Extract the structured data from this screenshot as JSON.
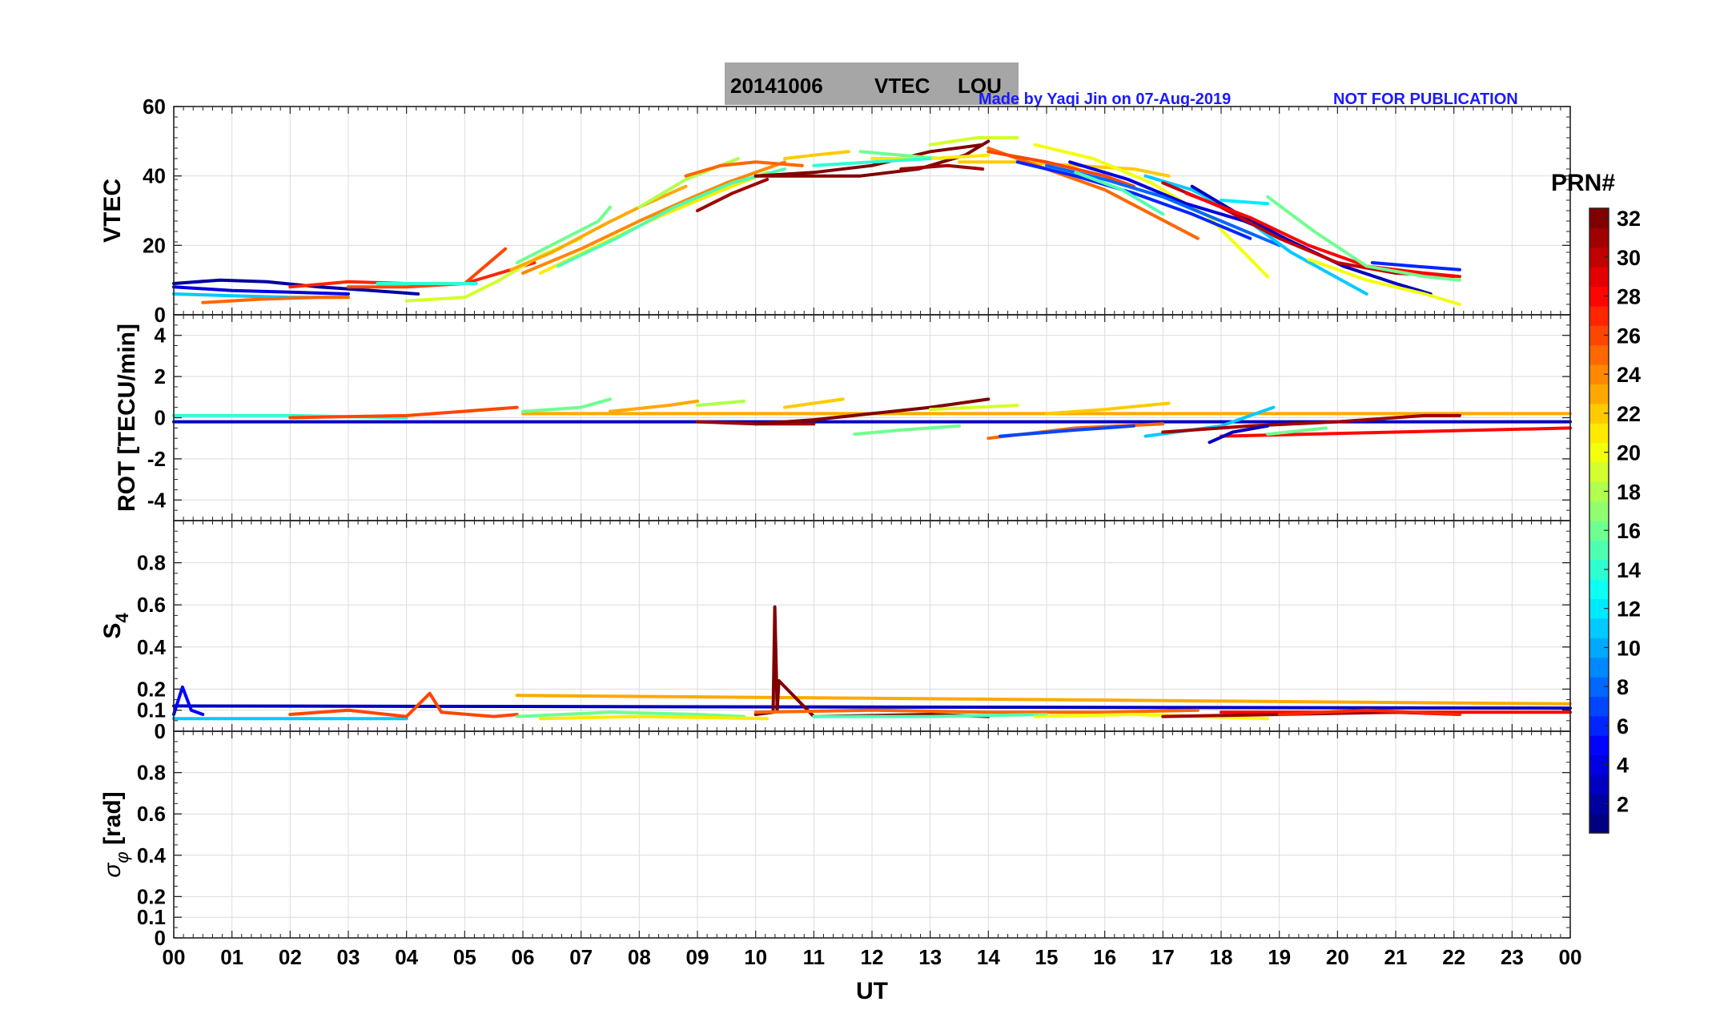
{
  "title": {
    "date": "20141006",
    "quantity": "VTEC",
    "station": "LOU",
    "credit": "Made by Yaqi Jin on 07-Aug-2019",
    "warning": "NOT FOR PUBLICATION"
  },
  "colors": {
    "title_bg": "#a6a6a6",
    "note": "#1a1aff",
    "grid": "#dcdcdc"
  },
  "chart_data": [
    {
      "type": "line",
      "panel": "VTEC",
      "ylabel": "VTEC",
      "ylim": [
        0,
        60
      ],
      "yticks": [
        0,
        20,
        40,
        60
      ],
      "xlim": [
        0,
        24
      ],
      "grid": true,
      "series": [
        {
          "prn": 2,
          "x": [
            0.0,
            0.8,
            1.6,
            2.5,
            3.4,
            4.2
          ],
          "y": [
            9,
            10,
            9.5,
            8,
            7,
            6
          ]
        },
        {
          "prn": 4,
          "x": [
            0.0,
            1.0,
            2.0,
            3.0
          ],
          "y": [
            8,
            7,
            6.5,
            6
          ]
        },
        {
          "prn": 11,
          "x": [
            0.0,
            1.0,
            2.0,
            3.0
          ],
          "y": [
            6,
            5.5,
            5,
            5
          ]
        },
        {
          "prn": 25,
          "x": [
            0.5,
            1.5,
            2.5,
            3.0
          ],
          "y": [
            3.5,
            4.5,
            5,
            5
          ]
        },
        {
          "prn": 27,
          "x": [
            2.0,
            3.0,
            4.0,
            5.0,
            5.6,
            6.2
          ],
          "y": [
            8,
            9.5,
            9,
            9,
            12,
            15
          ]
        },
        {
          "prn": 26,
          "x": [
            3.0,
            4.0,
            5.0,
            5.7
          ],
          "y": [
            8,
            8,
            9,
            19
          ]
        },
        {
          "prn": 19,
          "x": [
            4.0,
            5.0,
            5.6,
            6.3,
            7.0
          ],
          "y": [
            4,
            5,
            10,
            17,
            22
          ]
        },
        {
          "prn": 14,
          "x": [
            3.5,
            4.5,
            5.2
          ],
          "y": [
            9,
            9,
            9
          ]
        },
        {
          "prn": 16,
          "x": [
            5.9,
            6.6,
            7.3,
            7.5
          ],
          "y": [
            15,
            21,
            27,
            31
          ]
        },
        {
          "prn": 23,
          "x": [
            5.8,
            6.5,
            7.4,
            8.0,
            8.8
          ],
          "y": [
            13,
            18,
            26,
            31,
            37
          ]
        },
        {
          "prn": 24,
          "x": [
            6.0,
            7.0,
            8.0,
            8.8,
            9.5,
            10.5
          ],
          "y": [
            12,
            19,
            27,
            33,
            38,
            44
          ]
        },
        {
          "prn": 21,
          "x": [
            6.3,
            7.3,
            8.3,
            9.3,
            10.2
          ],
          "y": [
            12,
            20,
            28,
            35,
            41
          ]
        },
        {
          "prn": 15,
          "x": [
            6.6,
            7.6,
            8.6,
            9.6,
            10.5
          ],
          "y": [
            14,
            22,
            31,
            38,
            42
          ]
        },
        {
          "prn": 18,
          "x": [
            8.0,
            8.8,
            9.7
          ],
          "y": [
            31,
            39,
            45
          ]
        },
        {
          "prn": 31,
          "x": [
            9.0,
            9.6,
            10.2
          ],
          "y": [
            30,
            35,
            39
          ]
        },
        {
          "prn": 25,
          "x": [
            8.8,
            9.4,
            10.0,
            10.8
          ],
          "y": [
            40,
            43,
            44,
            43
          ]
        },
        {
          "prn": 22,
          "x": [
            10.5,
            11.0,
            11.6
          ],
          "y": [
            45,
            46,
            47
          ]
        },
        {
          "prn": 32,
          "x": [
            10.0,
            10.8,
            11.8,
            12.8,
            13.6,
            14.0
          ],
          "y": [
            40,
            40,
            40,
            42,
            46,
            50
          ]
        },
        {
          "prn": 32,
          "x": [
            10.0,
            11.0,
            12.0,
            13.0,
            13.9
          ],
          "y": [
            40,
            41,
            43,
            47,
            49
          ]
        },
        {
          "prn": 31,
          "x": [
            12.5,
            13.3,
            13.9
          ],
          "y": [
            42,
            43,
            42
          ]
        },
        {
          "prn": 16,
          "x": [
            11.8,
            12.5,
            13.2
          ],
          "y": [
            47,
            46,
            45
          ]
        },
        {
          "prn": 19,
          "x": [
            13.0,
            13.8,
            14.5
          ],
          "y": [
            49,
            51,
            51
          ]
        },
        {
          "prn": 21,
          "x": [
            12.0,
            13.0,
            14.0
          ],
          "y": [
            45,
            45,
            46
          ]
        },
        {
          "prn": 22,
          "x": [
            13.5,
            14.5,
            15.5,
            16.5,
            17.1
          ],
          "y": [
            44,
            44,
            43,
            42,
            40
          ]
        },
        {
          "prn": 14,
          "x": [
            11.0,
            12.0,
            13.0
          ],
          "y": [
            43,
            44,
            45
          ]
        },
        {
          "prn": 25,
          "x": [
            14.0,
            15.0,
            16.0,
            16.8,
            17.6
          ],
          "y": [
            48,
            42,
            36,
            29,
            22
          ]
        },
        {
          "prn": 26,
          "x": [
            14.0,
            15.0,
            16.0,
            16.5
          ],
          "y": [
            47,
            44,
            40,
            37
          ]
        },
        {
          "prn": 20,
          "x": [
            14.8,
            15.8,
            16.8,
            17.8,
            18.8
          ],
          "y": [
            49,
            45,
            38,
            28,
            11
          ]
        },
        {
          "prn": 6,
          "x": [
            14.5,
            15.5,
            16.5,
            17.5,
            18.5
          ],
          "y": [
            44,
            40,
            35,
            29,
            22
          ]
        },
        {
          "prn": 4,
          "x": [
            15.4,
            16.4,
            17.4,
            18.4,
            19.1
          ],
          "y": [
            44,
            39,
            32,
            27,
            22
          ]
        },
        {
          "prn": 8,
          "x": [
            15.0,
            16.0,
            17.0,
            18.0,
            19.0
          ],
          "y": [
            43,
            39,
            34,
            27,
            20
          ]
        },
        {
          "prn": 11,
          "x": [
            16.7,
            17.5,
            18.3,
            19.2,
            20.5
          ],
          "y": [
            40,
            36,
            29,
            18,
            6
          ]
        },
        {
          "prn": 15,
          "x": [
            15.5,
            16.3,
            17.0
          ],
          "y": [
            41,
            36,
            29
          ]
        },
        {
          "prn": 3,
          "x": [
            17.5,
            18.3,
            19.1,
            20.1,
            21.0,
            21.6
          ],
          "y": [
            37,
            29,
            22,
            14,
            9,
            6
          ]
        },
        {
          "prn": 30,
          "x": [
            17.0,
            18.0,
            19.0,
            20.0,
            21.0,
            22.0
          ],
          "y": [
            38,
            31,
            22,
            15,
            12,
            11
          ]
        },
        {
          "prn": 28,
          "x": [
            17.4,
            18.5,
            19.5,
            20.5,
            21.5,
            22.1
          ],
          "y": [
            35,
            28,
            20,
            14,
            12,
            11
          ]
        },
        {
          "prn": 16,
          "x": [
            18.8,
            19.6,
            20.5,
            21.5,
            22.1
          ],
          "y": [
            34,
            24,
            14,
            11,
            10
          ]
        },
        {
          "prn": 20,
          "x": [
            19.5,
            20.5,
            21.5,
            22.1
          ],
          "y": [
            16,
            10,
            6,
            3
          ]
        },
        {
          "prn": 6,
          "x": [
            20.6,
            21.3,
            22.1
          ],
          "y": [
            15,
            14,
            13
          ]
        },
        {
          "prn": 12,
          "x": [
            18.0,
            18.8
          ],
          "y": [
            33,
            32
          ]
        }
      ]
    },
    {
      "type": "line",
      "panel": "ROT",
      "ylabel": "ROT [TECU/min]",
      "ylim": [
        -5,
        5
      ],
      "yticks": [
        -4,
        -2,
        0,
        2,
        4
      ],
      "xlim": [
        0,
        24
      ],
      "grid": true,
      "series": [
        {
          "prn": 3,
          "x": [
            0.0,
            24.0
          ],
          "y": [
            -0.2,
            -0.2
          ]
        },
        {
          "prn": 23,
          "x": [
            6.0,
            24.0
          ],
          "y": [
            0.2,
            0.2
          ]
        },
        {
          "prn": 28,
          "x": [
            18.0,
            24.0
          ],
          "y": [
            -0.9,
            -0.5
          ]
        },
        {
          "prn": 14,
          "x": [
            0.0,
            2.0,
            4.0
          ],
          "y": [
            0.1,
            0.1,
            0.0
          ]
        },
        {
          "prn": 26,
          "x": [
            2.0,
            4.0,
            5.9
          ],
          "y": [
            0.0,
            0.1,
            0.5
          ]
        },
        {
          "prn": 16,
          "x": [
            6.0,
            7.0,
            7.5
          ],
          "y": [
            0.3,
            0.5,
            0.9
          ]
        },
        {
          "prn": 23,
          "x": [
            7.5,
            8.5,
            9.0
          ],
          "y": [
            0.3,
            0.6,
            0.8
          ]
        },
        {
          "prn": 18,
          "x": [
            9.0,
            9.8
          ],
          "y": [
            0.6,
            0.8
          ]
        },
        {
          "prn": 22,
          "x": [
            10.5,
            11.5
          ],
          "y": [
            0.5,
            0.9
          ]
        },
        {
          "prn": 31,
          "x": [
            9.0,
            10.0,
            11.0
          ],
          "y": [
            -0.2,
            -0.3,
            -0.3
          ]
        },
        {
          "prn": 32,
          "x": [
            10.0,
            11.0,
            12.0,
            13.0,
            14.0
          ],
          "y": [
            -0.3,
            -0.1,
            0.2,
            0.5,
            0.9
          ]
        },
        {
          "prn": 16,
          "x": [
            11.7,
            12.5,
            13.5
          ],
          "y": [
            -0.8,
            -0.6,
            -0.4
          ]
        },
        {
          "prn": 19,
          "x": [
            13.0,
            14.5
          ],
          "y": [
            0.4,
            0.6
          ]
        },
        {
          "prn": 25,
          "x": [
            14.0,
            15.5,
            17.0
          ],
          "y": [
            -1.0,
            -0.5,
            -0.3
          ]
        },
        {
          "prn": 7,
          "x": [
            14.2,
            15.5,
            16.5
          ],
          "y": [
            -0.9,
            -0.6,
            -0.4
          ]
        },
        {
          "prn": 22,
          "x": [
            15.0,
            16.0,
            17.1
          ],
          "y": [
            0.2,
            0.4,
            0.7
          ]
        },
        {
          "prn": 11,
          "x": [
            16.7,
            18.0,
            18.9
          ],
          "y": [
            -0.9,
            -0.4,
            0.5
          ]
        },
        {
          "prn": 31,
          "x": [
            17.0,
            18.5,
            20.0,
            21.5,
            22.1
          ],
          "y": [
            -0.7,
            -0.4,
            -0.2,
            0.1,
            0.1
          ]
        },
        {
          "prn": 3,
          "x": [
            17.8,
            18.2,
            18.8
          ],
          "y": [
            -1.2,
            -0.7,
            -0.4
          ]
        },
        {
          "prn": 16,
          "x": [
            18.8,
            19.8
          ],
          "y": [
            -0.8,
            -0.5
          ]
        }
      ]
    },
    {
      "type": "line",
      "panel": "S4",
      "ylabel": "S4",
      "ylim": [
        0,
        1
      ],
      "yticks": [
        0,
        0.1,
        0.2,
        0.4,
        0.6,
        0.8
      ],
      "xlim": [
        0,
        24
      ],
      "grid": true,
      "series": [
        {
          "prn": 3,
          "x": [
            0.0,
            24.0
          ],
          "y": [
            0.12,
            0.11
          ]
        },
        {
          "prn": 23,
          "x": [
            5.9,
            24.0
          ],
          "y": [
            0.17,
            0.13
          ]
        },
        {
          "prn": 28,
          "x": [
            18.0,
            24.0
          ],
          "y": [
            0.09,
            0.09
          ]
        },
        {
          "prn": 5,
          "x": [
            0.0,
            0.15,
            0.3,
            0.5
          ],
          "y": [
            0.08,
            0.21,
            0.1,
            0.08
          ]
        },
        {
          "prn": 11,
          "x": [
            0.0,
            2.0,
            4.0
          ],
          "y": [
            0.06,
            0.06,
            0.06
          ]
        },
        {
          "prn": 26,
          "x": [
            2.0,
            3.0,
            4.0,
            4.4,
            4.6,
            5.5,
            5.9
          ],
          "y": [
            0.08,
            0.1,
            0.07,
            0.18,
            0.09,
            0.07,
            0.08
          ]
        },
        {
          "prn": 16,
          "x": [
            5.9,
            7.5,
            9.0,
            9.8
          ],
          "y": [
            0.07,
            0.09,
            0.08,
            0.07
          ]
        },
        {
          "prn": 21,
          "x": [
            6.3,
            8.0,
            10.2
          ],
          "y": [
            0.06,
            0.07,
            0.06
          ]
        },
        {
          "prn": 32,
          "x": [
            10.0,
            10.3,
            10.33,
            10.37,
            10.4,
            11.0,
            13.0,
            14.0
          ],
          "y": [
            0.08,
            0.09,
            0.59,
            0.1,
            0.24,
            0.07,
            0.08,
            0.07
          ]
        },
        {
          "prn": 25,
          "x": [
            10.0,
            12.0,
            14.0,
            16.0,
            17.6
          ],
          "y": [
            0.09,
            0.1,
            0.09,
            0.09,
            0.1
          ]
        },
        {
          "prn": 15,
          "x": [
            11.0,
            13.0,
            15.0
          ],
          "y": [
            0.07,
            0.07,
            0.08
          ]
        },
        {
          "prn": 20,
          "x": [
            14.8,
            16.5,
            18.8
          ],
          "y": [
            0.07,
            0.08,
            0.06
          ]
        },
        {
          "prn": 31,
          "x": [
            17.0,
            19.0,
            21.0,
            22.1
          ],
          "y": [
            0.07,
            0.08,
            0.09,
            0.08
          ]
        },
        {
          "prn": 27,
          "x": [
            19.0,
            20.5,
            22.1
          ],
          "y": [
            0.08,
            0.1,
            0.08
          ]
        }
      ]
    },
    {
      "type": "line",
      "panel": "sigma_phi",
      "ylabel": "σ_φ [rad]",
      "ylim": [
        0,
        1
      ],
      "yticks": [
        0,
        0.1,
        0.2,
        0.4,
        0.6,
        0.8
      ],
      "xlim": [
        0,
        24
      ],
      "xticks": [
        "00",
        "01",
        "02",
        "03",
        "04",
        "05",
        "06",
        "07",
        "08",
        "09",
        "10",
        "11",
        "12",
        "13",
        "14",
        "15",
        "16",
        "17",
        "18",
        "19",
        "20",
        "21",
        "22",
        "23",
        "00"
      ],
      "xlabel": "UT",
      "grid": true,
      "series": []
    }
  ],
  "colorbar": {
    "label": "PRN#",
    "min": 1,
    "max": 32,
    "ticks": [
      2,
      4,
      6,
      8,
      10,
      12,
      14,
      16,
      18,
      20,
      22,
      24,
      26,
      28,
      30,
      32
    ],
    "colormap": "jet"
  }
}
